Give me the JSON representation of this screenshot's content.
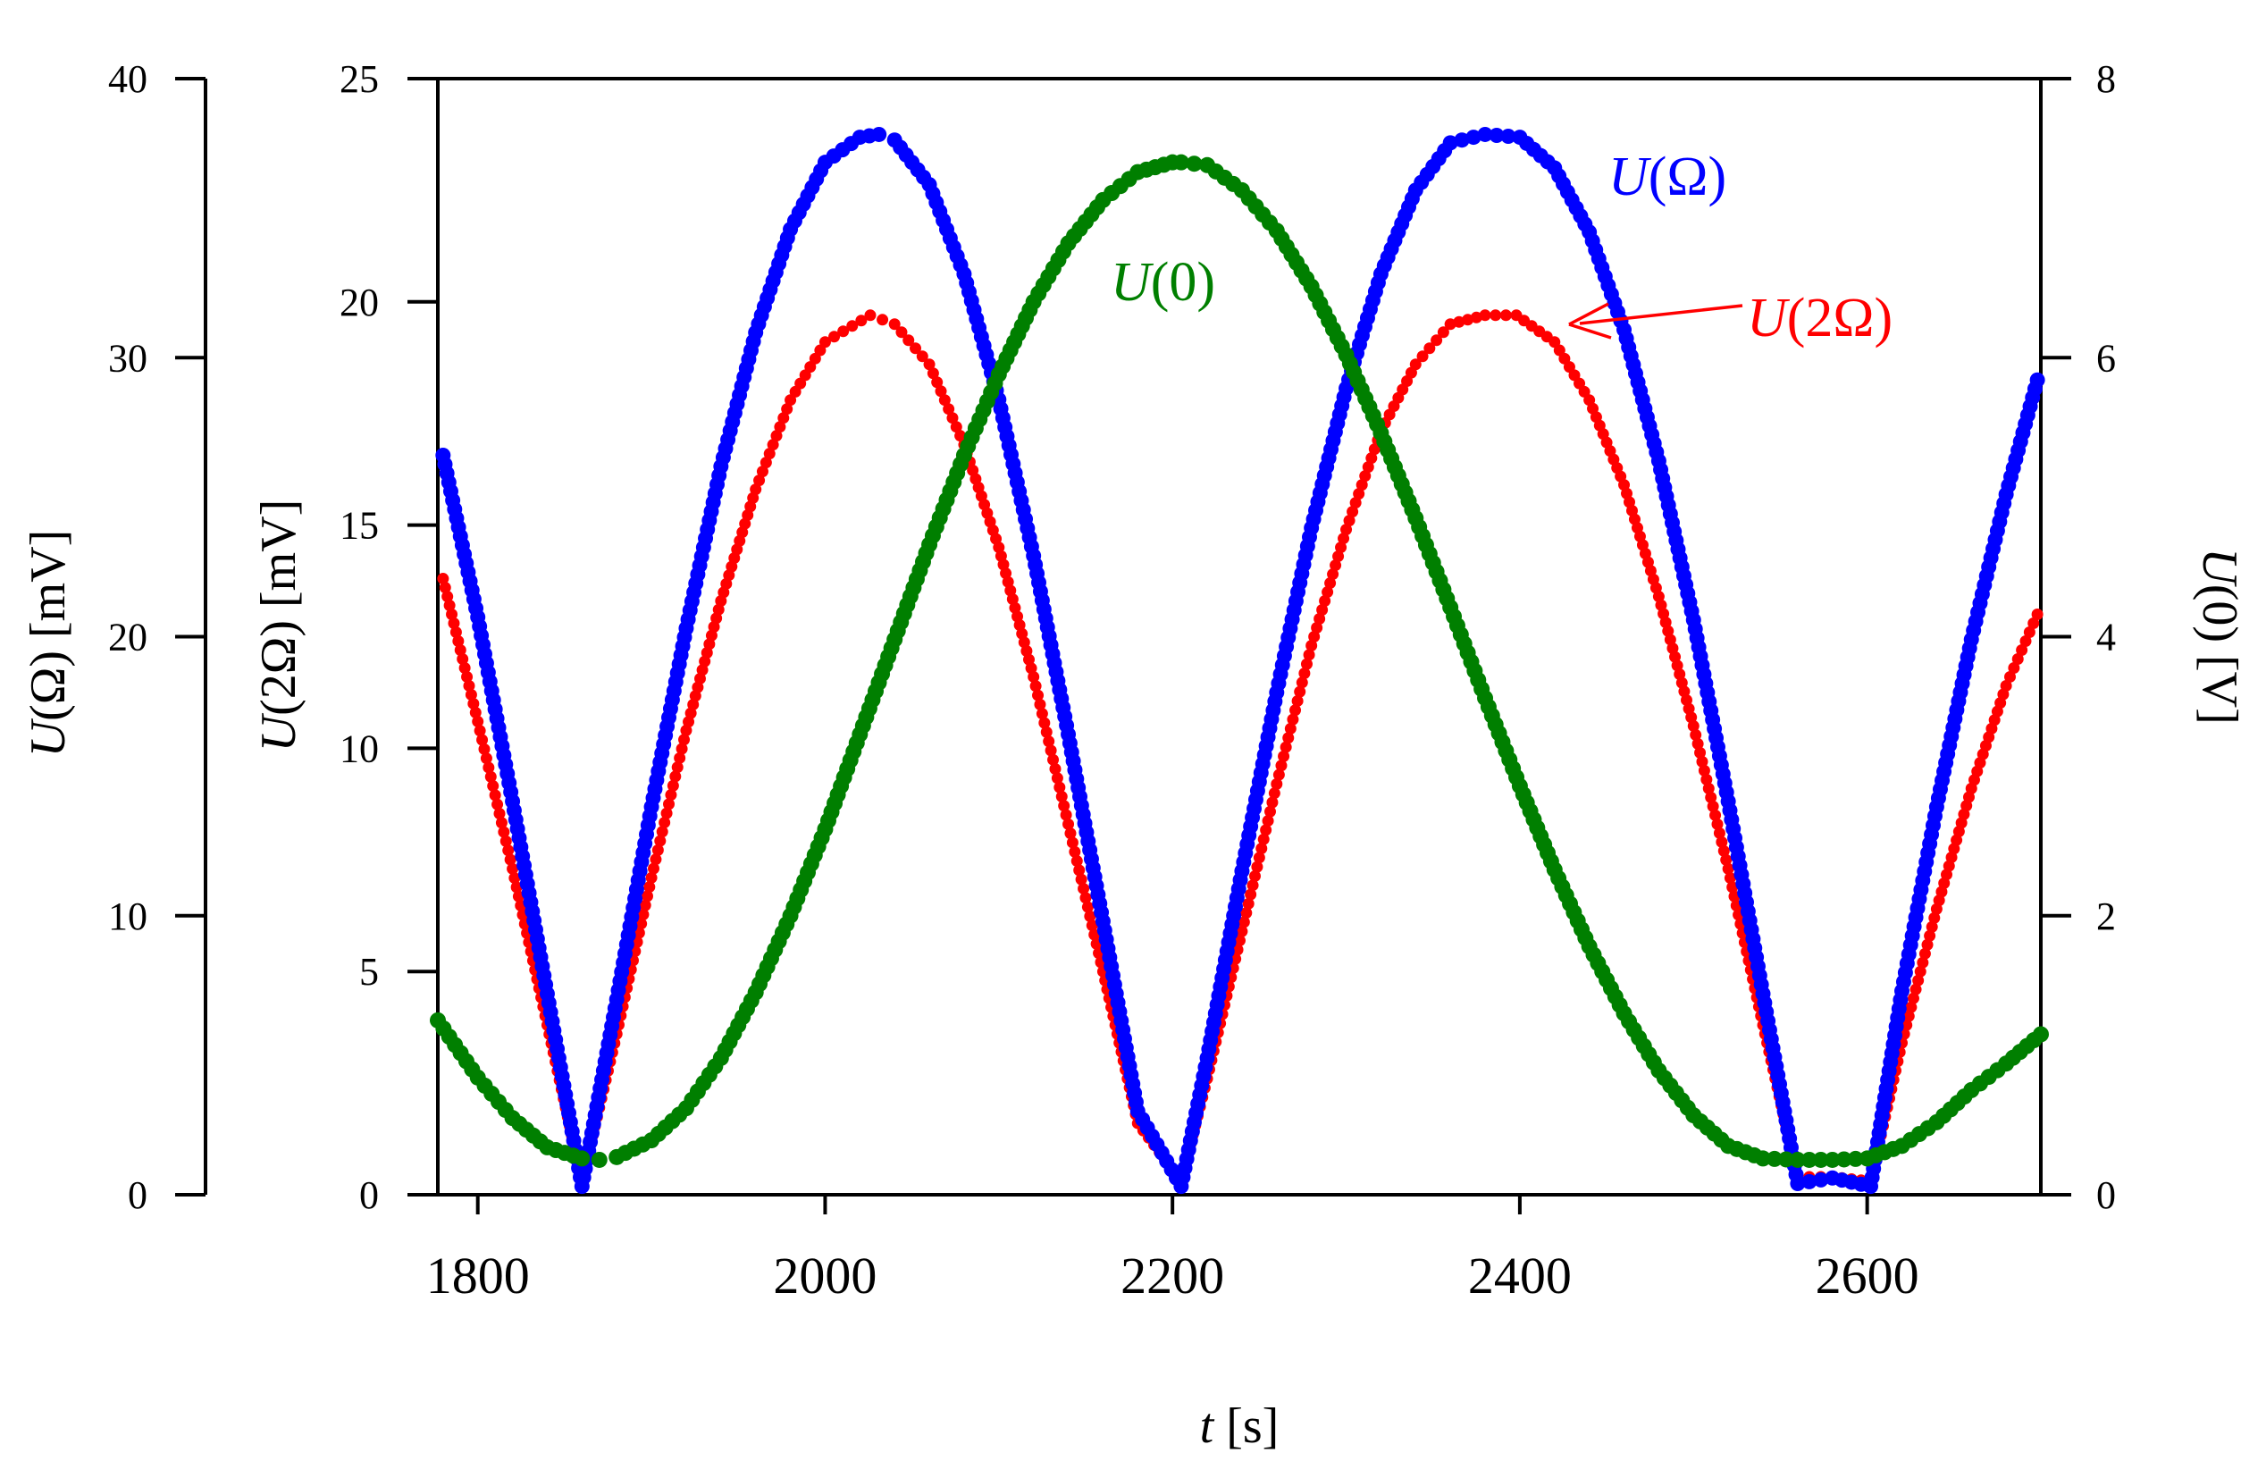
{
  "chart_data": {
    "type": "scatter",
    "x_axis": {
      "label_var": "t",
      "label_unit": "[s]",
      "range": [
        1777,
        2700
      ],
      "ticks": [
        1800,
        2000,
        2200,
        2400,
        2600
      ],
      "tick_labels": [
        "1800",
        "2000",
        "2200",
        "2400",
        "2600"
      ]
    },
    "left_outer_axis": {
      "label_var": "U",
      "label_arg": "(Ω)",
      "label_unit": "[mV]",
      "range": [
        0,
        40
      ],
      "ticks": [
        0,
        10,
        20,
        30,
        40
      ],
      "tick_labels": [
        "0",
        "10",
        "20",
        "30",
        "40"
      ]
    },
    "left_inner_axis": {
      "label_var": "U",
      "label_arg": "(2Ω)",
      "label_unit": "[mV]",
      "range": [
        0,
        25
      ],
      "ticks": [
        0,
        5,
        10,
        15,
        20,
        25
      ],
      "tick_labels": [
        "0",
        "5",
        "10",
        "15",
        "20",
        "25"
      ]
    },
    "right_axis": {
      "label_var": "U",
      "label_arg": "(0)",
      "label_unit": "[V]",
      "range": [
        0,
        8
      ],
      "ticks": [
        0,
        2,
        4,
        6,
        8
      ],
      "tick_labels": [
        "0",
        "2",
        "4",
        "6",
        "8"
      ]
    },
    "series": [
      {
        "id": "u_omega",
        "name_var": "U",
        "name_arg": "(Ω)",
        "color": "#0000ff",
        "axis": "left_outer_axis",
        "x": [
          1780,
          1800,
          1820,
          1840,
          1860,
          1880,
          1900,
          1920,
          1940,
          1960,
          1980,
          2000,
          2020,
          2031,
          2040,
          2060,
          2080,
          2100,
          2120,
          2140,
          2160,
          2180,
          2205,
          2220,
          2240,
          2260,
          2280,
          2300,
          2320,
          2340,
          2360,
          2380,
          2400,
          2420,
          2440,
          2460,
          2480,
          2500,
          2520,
          2540,
          2560,
          2580,
          2602,
          2620,
          2640,
          2660,
          2680,
          2698
        ],
        "y": [
          26.5,
          20.7,
          14.1,
          7.2,
          0.3,
          7.0,
          13.9,
          20.3,
          26.1,
          30.9,
          34.6,
          37.0,
          37.9,
          38.0,
          37.8,
          36.2,
          33.0,
          28.5,
          22.9,
          16.5,
          9.8,
          3.0,
          0.3,
          4.9,
          11.6,
          18.0,
          23.9,
          28.9,
          33.0,
          36.0,
          37.7,
          38.0,
          37.9,
          36.8,
          34.5,
          31.0,
          26.3,
          20.6,
          14.1,
          7.2,
          0.4,
          0.6,
          0.3,
          7.3,
          13.9,
          19.9,
          25.1,
          29.2
        ]
      },
      {
        "id": "u_2omega",
        "name_var": "U",
        "name_arg": "(2Ω)",
        "color": "#ff0000",
        "axis": "left_inner_axis",
        "x": [
          1780,
          1800,
          1820,
          1840,
          1860,
          1880,
          1900,
          1920,
          1940,
          1960,
          1980,
          2000,
          2026,
          2040,
          2060,
          2080,
          2100,
          2120,
          2140,
          2160,
          2180,
          2205,
          2220,
          2240,
          2260,
          2280,
          2300,
          2320,
          2340,
          2360,
          2380,
          2398,
          2420,
          2440,
          2460,
          2480,
          2500,
          2520,
          2540,
          2560,
          2580,
          2602,
          2620,
          2640,
          2660,
          2680,
          2698
        ],
        "y": [
          13.8,
          10.6,
          7.3,
          3.8,
          0.3,
          3.6,
          7.1,
          10.4,
          13.3,
          15.8,
          17.8,
          19.1,
          19.7,
          19.5,
          18.6,
          16.8,
          14.5,
          11.6,
          8.3,
          5.0,
          1.6,
          0.3,
          2.6,
          5.9,
          9.2,
          12.3,
          14.9,
          17.1,
          18.6,
          19.5,
          19.7,
          19.7,
          19.1,
          17.8,
          15.9,
          13.4,
          10.5,
          7.3,
          3.8,
          0.4,
          0.4,
          0.3,
          3.4,
          6.4,
          9.1,
          11.4,
          13.0
        ]
      },
      {
        "id": "u_0",
        "name_var": "U",
        "name_arg": "(0)",
        "color": "#007f00",
        "axis": "right_axis",
        "x": [
          1777,
          1800,
          1820,
          1840,
          1860,
          1870,
          1880,
          1900,
          1920,
          1940,
          1960,
          1980,
          2000,
          2020,
          2040,
          2060,
          2080,
          2100,
          2120,
          2140,
          2160,
          2180,
          2200,
          2205,
          2220,
          2240,
          2260,
          2280,
          2300,
          2320,
          2340,
          2360,
          2380,
          2400,
          2420,
          2440,
          2460,
          2480,
          2500,
          2520,
          2540,
          2560,
          2580,
          2600,
          2620,
          2640,
          2660,
          2680,
          2700
        ],
        "y": [
          1.25,
          0.84,
          0.55,
          0.34,
          0.26,
          0.25,
          0.27,
          0.39,
          0.62,
          0.98,
          1.45,
          2.0,
          2.62,
          3.3,
          3.98,
          4.66,
          5.3,
          5.88,
          6.4,
          6.82,
          7.13,
          7.33,
          7.4,
          7.4,
          7.38,
          7.2,
          6.91,
          6.51,
          6.02,
          5.46,
          4.85,
          4.21,
          3.56,
          2.93,
          2.33,
          1.78,
          1.3,
          0.89,
          0.57,
          0.35,
          0.26,
          0.25,
          0.25,
          0.26,
          0.35,
          0.52,
          0.75,
          0.94,
          1.15
        ]
      }
    ],
    "annotations": {
      "label_u_omega": {
        "var": "U",
        "arg": "(Ω)"
      },
      "label_u_0": {
        "var": "U",
        "arg": "(0)"
      },
      "label_u_2omega": {
        "var": "U",
        "arg": "(2Ω)"
      }
    }
  }
}
